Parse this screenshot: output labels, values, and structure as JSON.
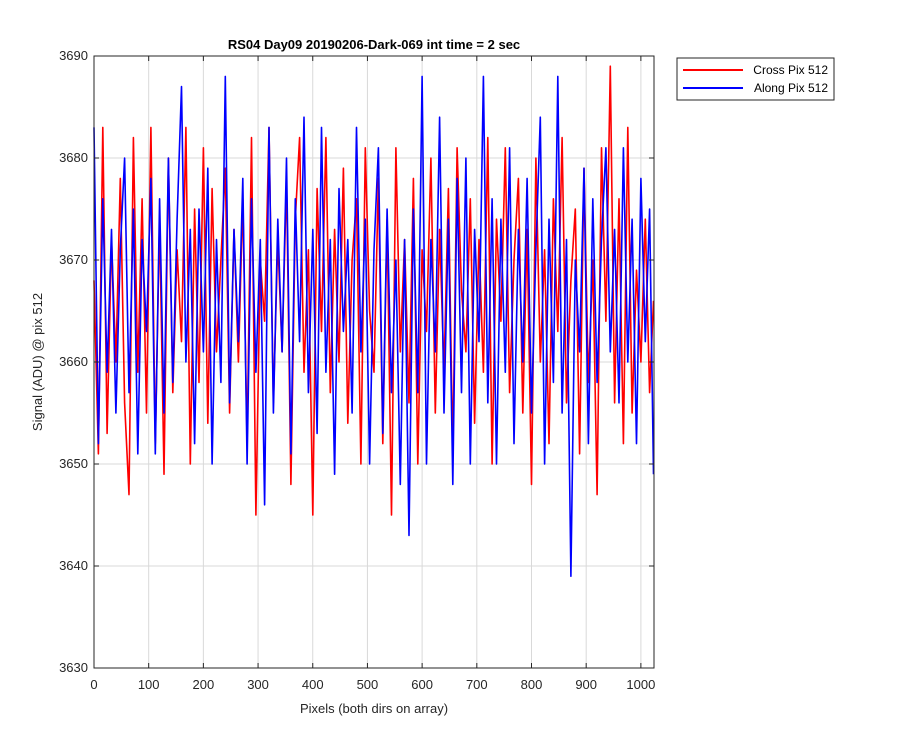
{
  "chart_data": {
    "type": "line",
    "title": "RS04 Day09 20190206-Dark-069 int time = 2 sec",
    "xlabel": "Pixels (both dirs on array)",
    "ylabel": "Signal (ADU) @ pix 512",
    "xlim": [
      0,
      1024
    ],
    "ylim": [
      3630,
      3690
    ],
    "xticks": [
      0,
      100,
      200,
      300,
      400,
      500,
      600,
      700,
      800,
      900,
      1000
    ],
    "yticks": [
      3630,
      3640,
      3650,
      3660,
      3670,
      3680,
      3690
    ],
    "grid": true,
    "legend_position": "outside-top-right",
    "series": [
      {
        "name": "Cross Pix 512",
        "color": "#ff0000",
        "x": [
          0,
          8,
          16,
          24,
          32,
          40,
          48,
          56,
          64,
          72,
          80,
          88,
          96,
          104,
          112,
          120,
          128,
          136,
          144,
          152,
          160,
          168,
          176,
          184,
          192,
          200,
          208,
          216,
          224,
          232,
          240,
          248,
          256,
          264,
          272,
          280,
          288,
          296,
          304,
          312,
          320,
          328,
          336,
          344,
          352,
          360,
          368,
          376,
          384,
          392,
          400,
          408,
          416,
          424,
          432,
          440,
          448,
          456,
          464,
          472,
          480,
          488,
          496,
          504,
          512,
          520,
          528,
          536,
          544,
          552,
          560,
          568,
          576,
          584,
          592,
          600,
          608,
          616,
          624,
          632,
          640,
          648,
          656,
          664,
          672,
          680,
          688,
          696,
          704,
          712,
          720,
          728,
          736,
          744,
          752,
          760,
          768,
          776,
          784,
          792,
          800,
          808,
          816,
          824,
          832,
          840,
          848,
          856,
          864,
          872,
          880,
          888,
          896,
          904,
          912,
          920,
          928,
          936,
          944,
          952,
          960,
          968,
          976,
          984,
          992,
          1000,
          1008,
          1016,
          1023
        ],
        "y": [
          3668,
          3651,
          3683,
          3653,
          3672,
          3660,
          3678,
          3656,
          3647,
          3682,
          3659,
          3676,
          3655,
          3683,
          3652,
          3674,
          3649,
          3680,
          3657,
          3671,
          3662,
          3683,
          3650,
          3675,
          3658,
          3681,
          3654,
          3677,
          3661,
          3670,
          3679,
          3655,
          3673,
          3660,
          3676,
          3652,
          3682,
          3645,
          3670,
          3664,
          3683,
          3656,
          3672,
          3661,
          3678,
          3648,
          3674,
          3682,
          3659,
          3671,
          3645,
          3677,
          3663,
          3682,
          3657,
          3673,
          3660,
          3679,
          3654,
          3670,
          3676,
          3650,
          3681,
          3665,
          3659,
          3678,
          3652,
          3674,
          3645,
          3681,
          3661,
          3672,
          3656,
          3678,
          3650,
          3671,
          3663,
          3680,
          3655,
          3673,
          3659,
          3677,
          3651,
          3681,
          3667,
          3661,
          3676,
          3654,
          3672,
          3659,
          3682,
          3650,
          3674,
          3664,
          3681,
          3657,
          3670,
          3678,
          3655,
          3673,
          3648,
          3680,
          3660,
          3671,
          3652,
          3676,
          3663,
          3682,
          3656,
          3668,
          3675,
          3651,
          3679,
          3658,
          3670,
          3647,
          3681,
          3664,
          3689,
          3656,
          3676,
          3652,
          3683,
          3655,
          3669,
          3660,
          3674,
          3657,
          3666
        ]
      },
      {
        "name": "Along Pix 512",
        "color": "#0000ff",
        "x": [
          0,
          8,
          16,
          24,
          32,
          40,
          48,
          56,
          64,
          72,
          80,
          88,
          96,
          104,
          112,
          120,
          128,
          136,
          144,
          152,
          160,
          168,
          176,
          184,
          192,
          200,
          208,
          216,
          224,
          232,
          240,
          248,
          256,
          264,
          272,
          280,
          288,
          296,
          304,
          312,
          320,
          328,
          336,
          344,
          352,
          360,
          368,
          376,
          384,
          392,
          400,
          408,
          416,
          424,
          432,
          440,
          448,
          456,
          464,
          472,
          480,
          488,
          496,
          504,
          512,
          520,
          528,
          536,
          544,
          552,
          560,
          568,
          576,
          584,
          592,
          600,
          608,
          616,
          624,
          632,
          640,
          648,
          656,
          664,
          672,
          680,
          688,
          696,
          704,
          712,
          720,
          728,
          736,
          744,
          752,
          760,
          768,
          776,
          784,
          792,
          800,
          808,
          816,
          824,
          832,
          840,
          848,
          856,
          864,
          872,
          880,
          888,
          896,
          904,
          912,
          920,
          928,
          936,
          944,
          952,
          960,
          968,
          976,
          984,
          992,
          1000,
          1008,
          1016,
          1023
        ],
        "y": [
          3683,
          3652,
          3676,
          3659,
          3673,
          3655,
          3671,
          3680,
          3657,
          3675,
          3651,
          3672,
          3663,
          3678,
          3651,
          3676,
          3655,
          3680,
          3658,
          3674,
          3687,
          3660,
          3673,
          3652,
          3675,
          3661,
          3679,
          3650,
          3672,
          3658,
          3688,
          3656,
          3673,
          3662,
          3678,
          3650,
          3676,
          3659,
          3672,
          3646,
          3683,
          3655,
          3674,
          3661,
          3680,
          3651,
          3676,
          3662,
          3684,
          3657,
          3673,
          3653,
          3683,
          3659,
          3672,
          3649,
          3677,
          3663,
          3672,
          3655,
          3683,
          3661,
          3674,
          3650,
          3671,
          3681,
          3653,
          3675,
          3657,
          3670,
          3648,
          3672,
          3643,
          3675,
          3657,
          3688,
          3650,
          3672,
          3661,
          3684,
          3655,
          3674,
          3648,
          3678,
          3657,
          3680,
          3650,
          3673,
          3662,
          3688,
          3656,
          3676,
          3650,
          3674,
          3659,
          3681,
          3652,
          3673,
          3660,
          3678,
          3655,
          3671,
          3684,
          3650,
          3674,
          3658,
          3688,
          3655,
          3672,
          3639,
          3670,
          3661,
          3679,
          3652,
          3676,
          3658,
          3672,
          3681,
          3661,
          3673,
          3656,
          3681,
          3660,
          3674,
          3652,
          3678,
          3662,
          3675,
          3649
        ]
      }
    ]
  }
}
